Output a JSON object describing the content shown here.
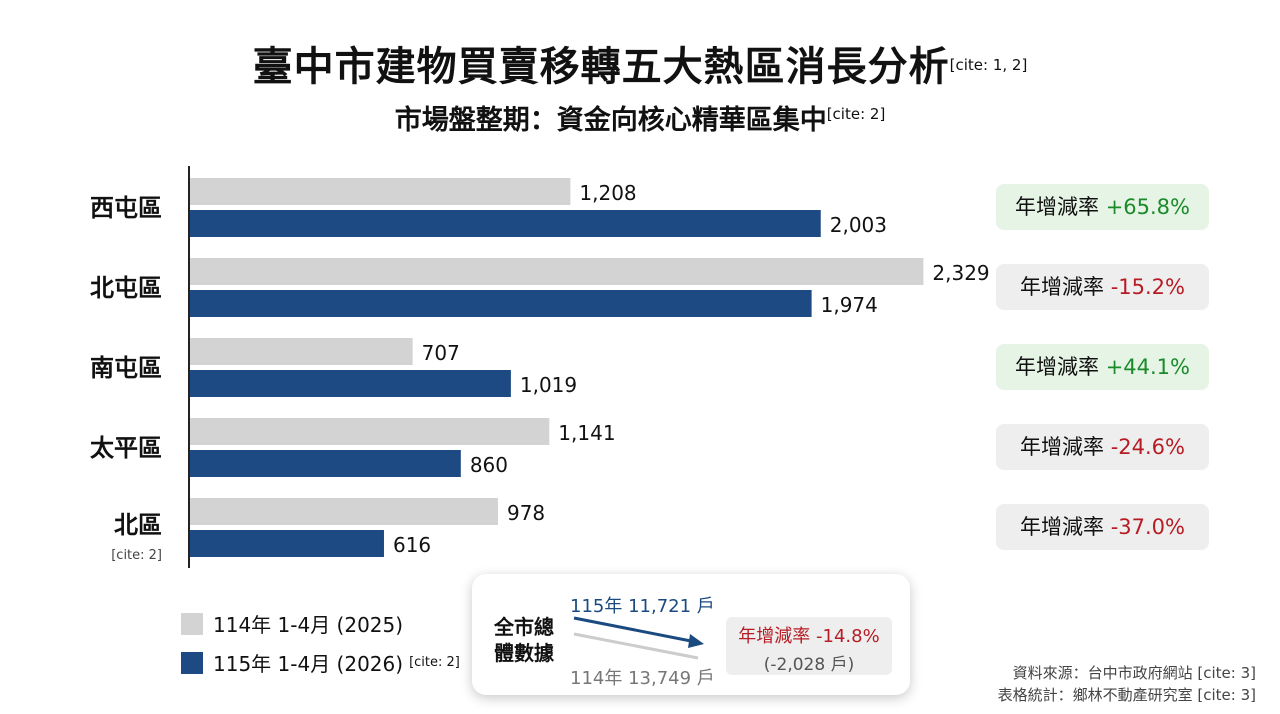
{
  "title": "臺中市建物買賣移轉五大熱區消長分析",
  "title_cite": "[cite: 1, 2]",
  "subtitle": "市場盤整期：資金向核心精華區集中",
  "subtitle_cite": "[cite: 2]",
  "colors": {
    "series_2025": "#d3d3d3",
    "series_2026": "#1d4a82",
    "increase": "#1a8a2a",
    "decrease": "#b71c24"
  },
  "chart_data": {
    "type": "bar",
    "orientation": "horizontal",
    "categories": [
      "西屯區",
      "北屯區",
      "南屯區",
      "太平區",
      "北區"
    ],
    "category_cites": [
      "",
      "",
      "",
      "",
      "[cite: 2]"
    ],
    "series": [
      {
        "name": "114年 1-4月 (2025)",
        "values": [
          1208,
          2329,
          707,
          1141,
          978
        ],
        "labels": [
          "1,208",
          "2,329",
          "707",
          "1,141",
          "978"
        ]
      },
      {
        "name": "115年 1-4月 (2026)",
        "values": [
          2003,
          1974,
          1019,
          860,
          616
        ],
        "labels": [
          "2,003",
          "1,974",
          "1,019",
          "860",
          "616"
        ]
      }
    ],
    "xlim": [
      0,
      2800
    ],
    "grid": false,
    "legend_position": "bottom-left"
  },
  "legend": {
    "item_2025": "114年 1-4月 (2025)",
    "item_2026": "115年 1-4月 (2026)",
    "item_2026_cite": "[cite: 2]"
  },
  "growth": [
    {
      "label": "年增減率",
      "value": "+65.8%",
      "direction": "up"
    },
    {
      "label": "年增減率",
      "value": "-15.2%",
      "direction": "down"
    },
    {
      "label": "年增減率",
      "value": "+44.1%",
      "direction": "up"
    },
    {
      "label": "年增減率",
      "value": "-24.6%",
      "direction": "down"
    },
    {
      "label": "年增減率",
      "value": "-37.0%",
      "direction": "down"
    }
  ],
  "total": {
    "title": "全市總體數據",
    "new_value": "115年 11,721 戶",
    "old_value": "114年 13,749 戶",
    "rate": "年增減率 -14.8%",
    "diff": "(-2,028 戶)"
  },
  "source": {
    "line1": "資料來源：台中市政府網站 [cite: 3]",
    "line2": "表格統計：鄉林不動產研究室 [cite: 3]"
  }
}
